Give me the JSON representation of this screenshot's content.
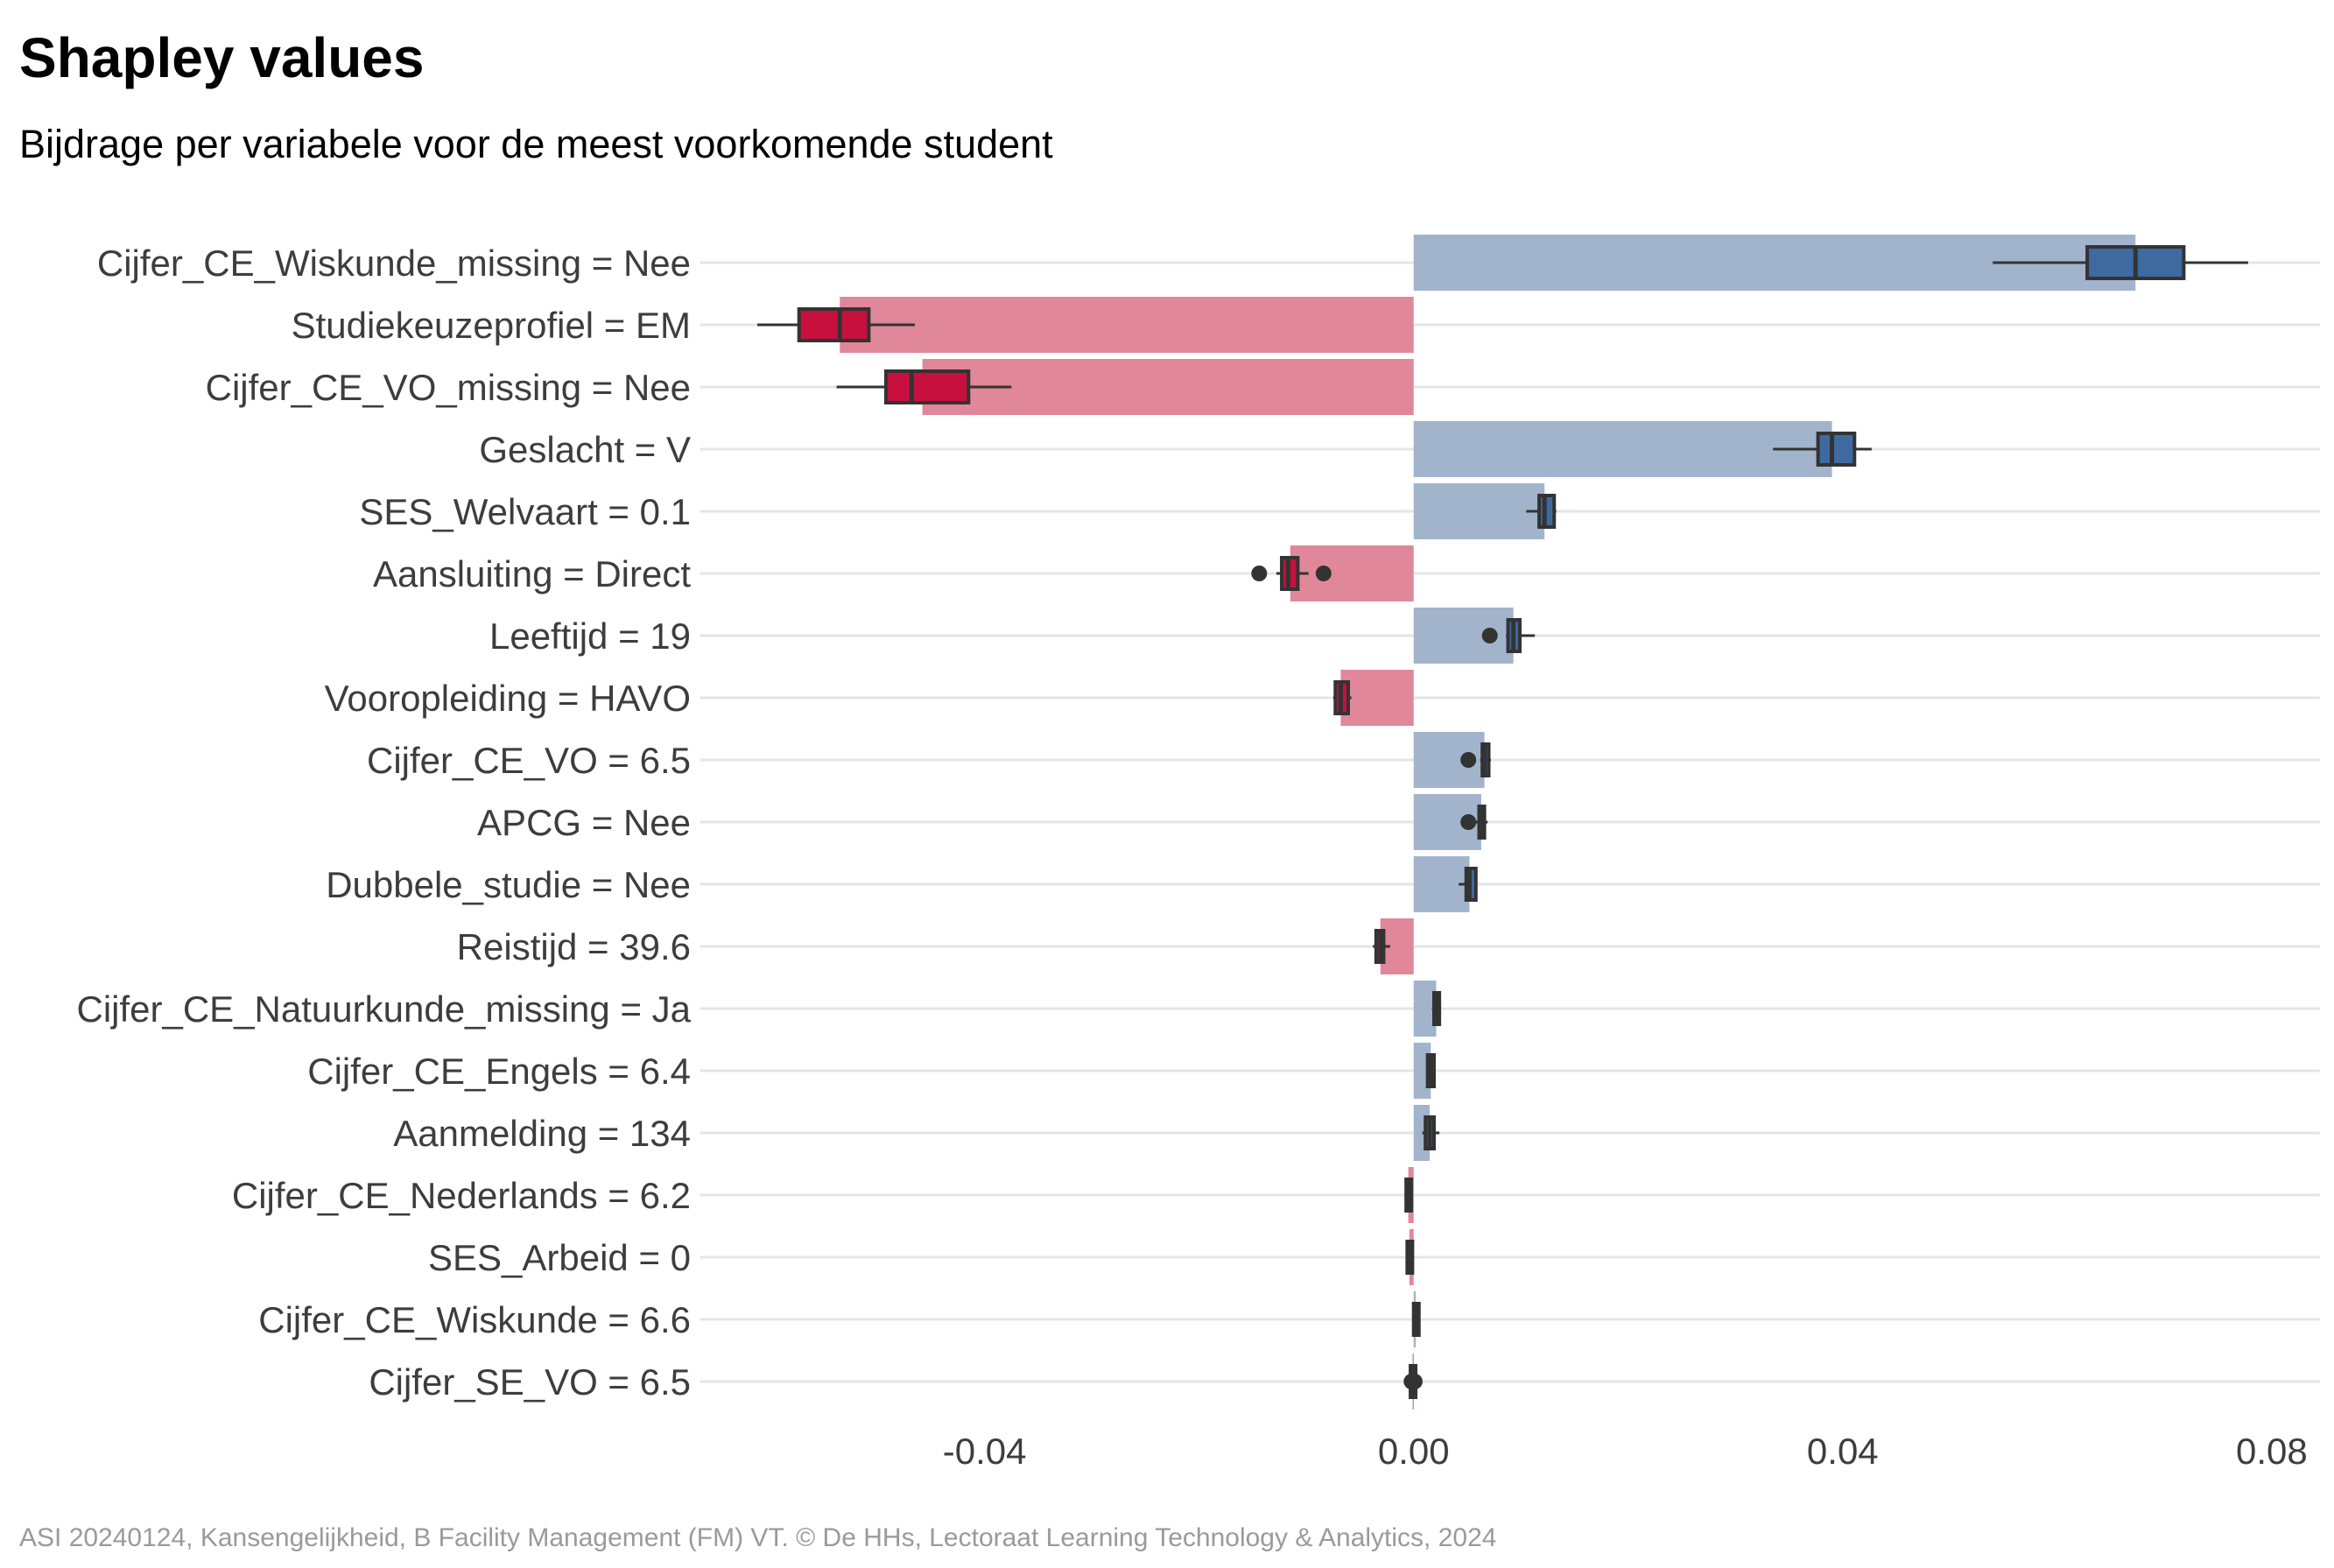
{
  "chart_data": {
    "type": "bar",
    "title": "Shapley values",
    "subtitle": "Bijdrage per variabele voor de meest voorkomende student",
    "caption": "ASI 20240124, Kansengelijkheid, B Facility Management (FM) VT. © De HHs, Lectoraat Learning Technology & Analytics, 2024",
    "orientation": "horizontal",
    "xlim": [
      -0.0665,
      0.0845
    ],
    "x_ticks": [
      -0.04,
      0.0,
      0.04,
      0.08
    ],
    "x_tick_labels": [
      "-0.04",
      "0.00",
      "0.04",
      "0.08"
    ],
    "grid": "horizontal lines per category",
    "colors": {
      "positive_bar": "#a1b4cc",
      "negative_bar": "#e0879a",
      "positive_box": "#3e6aa0",
      "negative_box": "#c8103e",
      "whisker": "#333333",
      "grid": "#e5e5e5"
    },
    "categories": [
      "Cijfer_CE_Wiskunde_missing = Nee",
      "Studiekeuzeprofiel = EM",
      "Cijfer_CE_VO_missing = Nee",
      "Geslacht = V",
      "SES_Welvaart = 0.1",
      "Aansluiting = Direct",
      "Leeftijd = 19",
      "Vooropleiding = HAVO",
      "Cijfer_CE_VO = 6.5",
      "APCG = Nee",
      "Dubbele_studie = Nee",
      "Reistijd = 39.6",
      "Cijfer_CE_Natuurkunde_missing = Ja",
      "Cijfer_CE_Engels = 6.4",
      "Aanmelding = 134",
      "Cijfer_CE_Nederlands = 6.2",
      "SES_Arbeid = 0",
      "Cijfer_CE_Wiskunde = 6.6",
      "Cijfer_SE_VO = 6.5"
    ],
    "values": [
      0.0673,
      -0.0535,
      -0.0458,
      0.039,
      0.0122,
      -0.0115,
      0.0093,
      -0.0068,
      0.0066,
      0.0063,
      0.0052,
      -0.0031,
      0.0021,
      0.0016,
      0.0015,
      -0.0005,
      -0.0004,
      0.0002,
      -0.0001
    ],
    "boxplots": [
      {
        "min": 0.054,
        "q1": 0.0628,
        "median": 0.0673,
        "q3": 0.0718,
        "max": 0.0778,
        "outliers": []
      },
      {
        "min": -0.0612,
        "q1": -0.0573,
        "median": -0.0535,
        "q3": -0.0508,
        "max": -0.0465,
        "outliers": []
      },
      {
        "min": -0.0538,
        "q1": -0.0492,
        "median": -0.0468,
        "q3": -0.0415,
        "max": -0.0375,
        "outliers": []
      },
      {
        "min": 0.0335,
        "q1": 0.0377,
        "median": 0.039,
        "q3": 0.0411,
        "max": 0.0427,
        "outliers": []
      },
      {
        "min": 0.0105,
        "q1": 0.0117,
        "median": 0.0122,
        "q3": 0.0131,
        "max": 0.0133,
        "outliers": []
      },
      {
        "min": -0.0128,
        "q1": -0.0123,
        "median": -0.0117,
        "q3": -0.0108,
        "max": -0.0098,
        "outliers": [
          -0.0144,
          -0.0084
        ]
      },
      {
        "min": 0.0086,
        "q1": 0.0088,
        "median": 0.0093,
        "q3": 0.0099,
        "max": 0.0113,
        "outliers": [
          0.0071
        ]
      },
      {
        "min": -0.0075,
        "q1": -0.0073,
        "median": -0.0068,
        "q3": -0.0061,
        "max": -0.0058,
        "outliers": []
      },
      {
        "min": 0.0062,
        "q1": 0.0064,
        "median": 0.0066,
        "q3": 0.007,
        "max": 0.0072,
        "outliers": [
          0.0051
        ]
      },
      {
        "min": 0.0058,
        "q1": 0.0061,
        "median": 0.0063,
        "q3": 0.0066,
        "max": 0.0069,
        "outliers": [
          0.0051
        ]
      },
      {
        "min": 0.0042,
        "q1": 0.0049,
        "median": 0.0052,
        "q3": 0.0058,
        "max": 0.0059,
        "outliers": []
      },
      {
        "min": -0.0038,
        "q1": -0.0035,
        "median": -0.0031,
        "q3": -0.0028,
        "max": -0.0022,
        "outliers": []
      },
      {
        "min": 0.0017,
        "q1": 0.0019,
        "median": 0.0021,
        "q3": 0.0024,
        "max": 0.0025,
        "outliers": []
      },
      {
        "min": 0.0012,
        "q1": 0.0013,
        "median": 0.0016,
        "q3": 0.0019,
        "max": 0.002,
        "outliers": []
      },
      {
        "min": 0.0008,
        "q1": 0.0011,
        "median": 0.0015,
        "q3": 0.0019,
        "max": 0.0024,
        "outliers": []
      },
      {
        "min": -0.0008,
        "q1": -0.0007,
        "median": -0.0005,
        "q3": -0.0003,
        "max": -0.0002,
        "outliers": []
      },
      {
        "min": -0.0007,
        "q1": -0.0006,
        "median": -0.0004,
        "q3": -0.0002,
        "max": -0.0001,
        "outliers": []
      },
      {
        "min": -0.0001,
        "q1": 0.0,
        "median": 0.0002,
        "q3": 0.0004,
        "max": 0.0005,
        "outliers": []
      },
      {
        "min": -0.0004,
        "q1": -0.0003,
        "median": -0.0001,
        "q3": 0.0001,
        "max": 0.0002,
        "outliers": [
          -0.0002,
          0.0001
        ]
      }
    ]
  }
}
